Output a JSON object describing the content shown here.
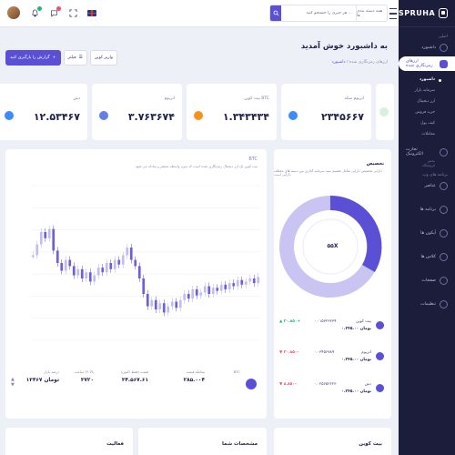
{
  "brand": {
    "name": "SPRUHA"
  },
  "header": {
    "search_placeholder": "هر چیزی را جستجو کنید ...",
    "search_category": "همه دسته بندی ها",
    "language": "English"
  },
  "page": {
    "title": "به داشبورد خوش آمدید",
    "breadcrumb_root": "ارزهای رمزنگاری شده",
    "breadcrumb_current": "داشبورد"
  },
  "actions": {
    "primary": "گزارش را بارگیری کنید",
    "filter": "فیلتر",
    "wallet": "واریز کوین"
  },
  "stats": [
    {
      "label": "اتریوم سکه",
      "value": "۲۳۴۵۶۶۷",
      "coin_color": "#3b8cff"
    },
    {
      "label": "بیت کوین BTC",
      "value": "۱.۳۴۳۴۳۴",
      "coin_color": "#f7931a"
    },
    {
      "label": "اتریوم",
      "value": "۳.۷۶۳۶۷۴",
      "coin_color": "#627eea"
    },
    {
      "label": "دش",
      "value": "۱۲.۵۳۴۶۷",
      "coin_color": "#3b8cff"
    }
  ],
  "sidebar": {
    "section_main": "اصلی",
    "dashboard": "داشبورد",
    "crypto": "ارزهای رمزنگاری شده",
    "sub_items": [
      "داشبورد",
      "سرمایه بازار",
      "ارز دیجیتال",
      "خرید فروش",
      "کیف پول",
      "معاملات"
    ],
    "ecommerce": "تجارت الکترونیک",
    "ecommerce_sub": "بخش فروشگاه",
    "section_web": "برنامه های وب",
    "items": [
      "عناصر",
      "برنامه ها",
      "آیکون ها",
      "کلاس ها",
      "صفحات",
      "تنظیمات"
    ]
  },
  "chart_card": {
    "title": "BTC",
    "description": "بیت کوین یک ارز دیجیتال رمزنگاری شده است که بدون واسطه منتشر و مبادله می شود",
    "footer": [
      {
        "key": "BTC",
        "value": ""
      },
      {
        "key": "معامله قیمت",
        "value": "۲۸۵.۰۰۴"
      },
      {
        "key": "قیمت (فقط اکنون)",
        "value": "۳۴.۵۶۷.۶۱"
      },
      {
        "key": "بالا ۲۴ ساعت",
        "value": "۳۷۲۰"
      },
      {
        "key": "درصد بازار",
        "value": "۱۳۴۶۷ تومان"
      }
    ]
  },
  "allocation": {
    "title": "تخصیص",
    "description": "دارایی تخصیص دارایی شامل تقسیم سبد سرمایه گذاری بین دسته های مختلف دارایی است",
    "center": "۵۵X",
    "rows": [
      {
        "name": "بیت کوین",
        "price": "۰.۳۴۵.۰۰ تومان",
        "qty": "۰.۰۱۵۳۲۳۲۳۹",
        "change": "▲ ۳۰.۸۵۰+",
        "change_color": "#22b573",
        "color": "#5b4fd6"
      },
      {
        "name": "اتریوم",
        "price": "۰.۳۴۵.۰۰ تومان",
        "qty": "۰.۰۳۴۵۶۷۸۹",
        "change": "▼ ۳۰.۸۵۰-",
        "change_color": "#ef4b6b",
        "color": "#5b4fd6"
      },
      {
        "name": "دش",
        "price": "۰.۳۴۵.۰۰ تومان",
        "qty": "۰.۰۲۵۶۵۲۶۲۳",
        "change": "▼ ۸.۸۵۰-",
        "change_color": "#ef4b6b",
        "color": "#5b4fd6"
      }
    ]
  },
  "bottom": {
    "card_a": "بیت کوین",
    "card_b": "مشخصات شما",
    "card_c": "فعالیت"
  },
  "colors": {
    "accent": "#5b4fd6",
    "candle_light": "#c2bdf0",
    "candle_dark": "#6b60d9"
  }
}
